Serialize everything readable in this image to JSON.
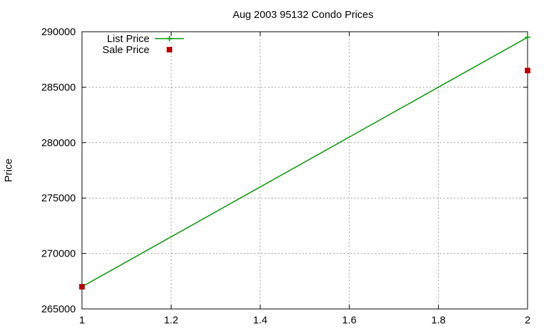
{
  "chart_data": {
    "type": "line",
    "title": "Aug 2003 95132 Condo Prices",
    "xlabel": "",
    "ylabel": "Price",
    "xlim": [
      1,
      2
    ],
    "ylim": [
      265000,
      290000
    ],
    "x_ticks": [
      1,
      1.2,
      1.4,
      1.6,
      1.8,
      2
    ],
    "x_tick_labels": [
      "1",
      "1.2",
      "1.4",
      "1.6",
      "1.8",
      "2"
    ],
    "y_ticks": [
      265000,
      270000,
      275000,
      280000,
      285000,
      290000
    ],
    "y_tick_labels": [
      "265000",
      "270000",
      "275000",
      "280000",
      "285000",
      "290000"
    ],
    "grid": true,
    "legend_position": "top-left",
    "series": [
      {
        "name": "List Price",
        "style": "line+point",
        "marker": "plus",
        "color": "#009900",
        "x": [
          1,
          2
        ],
        "y": [
          267000,
          289500
        ]
      },
      {
        "name": "Sale Price",
        "style": "point",
        "marker": "square",
        "color": "#bb0000",
        "x": [
          1,
          2
        ],
        "y": [
          267000,
          286500
        ]
      }
    ]
  }
}
